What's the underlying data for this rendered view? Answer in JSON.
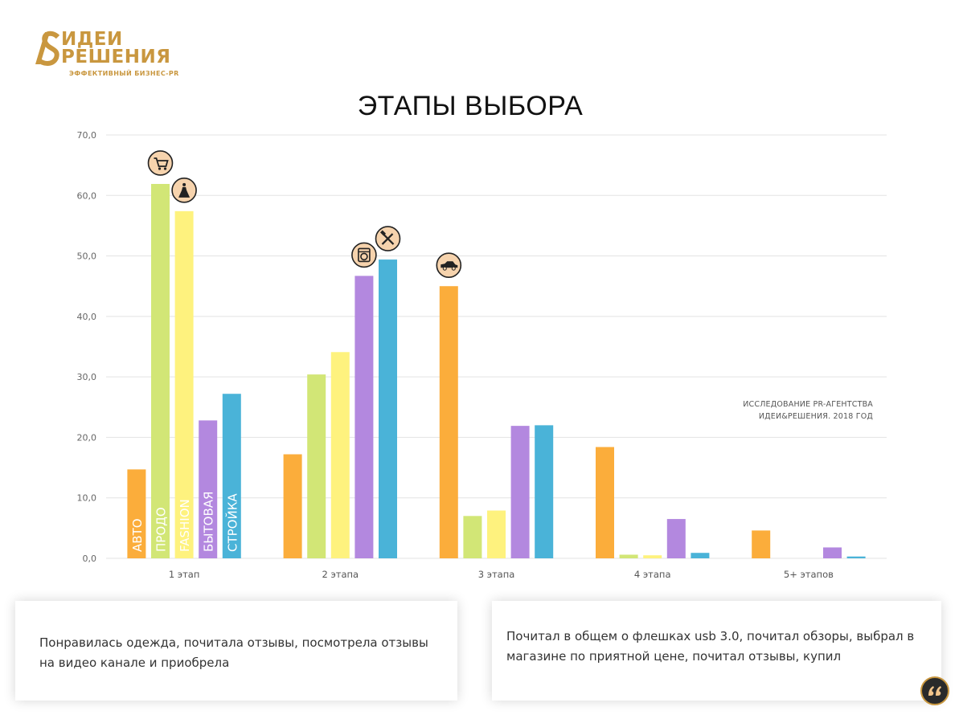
{
  "logo": {
    "line1": "ИДЕИ",
    "line2": "РЕШЕНИЯ",
    "tagline": "ЭФФЕКТИВНЫЙ БИЗНЕС-PR",
    "color": "#c9973f"
  },
  "source_note": {
    "line1": "ИССЛЕДОВАНИЕ PR-АГЕНТСТВА",
    "line2": "ИДЕИ&РЕШЕНИЯ. 2018 ГОД"
  },
  "quotes": [
    "Понравилась одежда, почитала отзывы, посмотрела отзывы на видео канале и приобрела",
    "Почитал в общем о флешках usb 3.0, почитал обзоры, выбрал в магазине по приятной цене, почитал отзывы, купил"
  ],
  "chart_data": {
    "type": "bar",
    "title": "ЭТАПЫ ВЫБОРА",
    "categories": [
      "1 этап",
      "2 этапа",
      "3 этапа",
      "4 этапа",
      "5+ этапов"
    ],
    "ylim": [
      0,
      70
    ],
    "yticks": [
      "0,0",
      "10,0",
      "20,0",
      "30,0",
      "40,0",
      "50,0",
      "60,0",
      "70,0"
    ],
    "grid": true,
    "series": [
      {
        "name": "АВТО",
        "color": "#fbad3b",
        "icon": "car-icon",
        "values": [
          14.7,
          17.2,
          45.0,
          18.4,
          4.6
        ]
      },
      {
        "name": "ПРОДО",
        "color": "#d2e676",
        "icon": "shopping-cart-icon",
        "values": [
          61.9,
          30.4,
          7.0,
          0.6,
          0.0
        ]
      },
      {
        "name": "FASHION",
        "color": "#fef27e",
        "icon": "dress-icon",
        "values": [
          57.4,
          34.1,
          7.9,
          0.5,
          0.0
        ]
      },
      {
        "name": "БЫТОВАЯ",
        "color": "#b388df",
        "icon": "washing-machine-icon",
        "values": [
          22.8,
          46.7,
          21.9,
          6.5,
          1.8
        ]
      },
      {
        "name": "СТРОЙКА",
        "color": "#4ab3d8",
        "icon": "tools-icon",
        "values": [
          27.2,
          49.4,
          22.0,
          0.9,
          0.3
        ]
      }
    ]
  }
}
